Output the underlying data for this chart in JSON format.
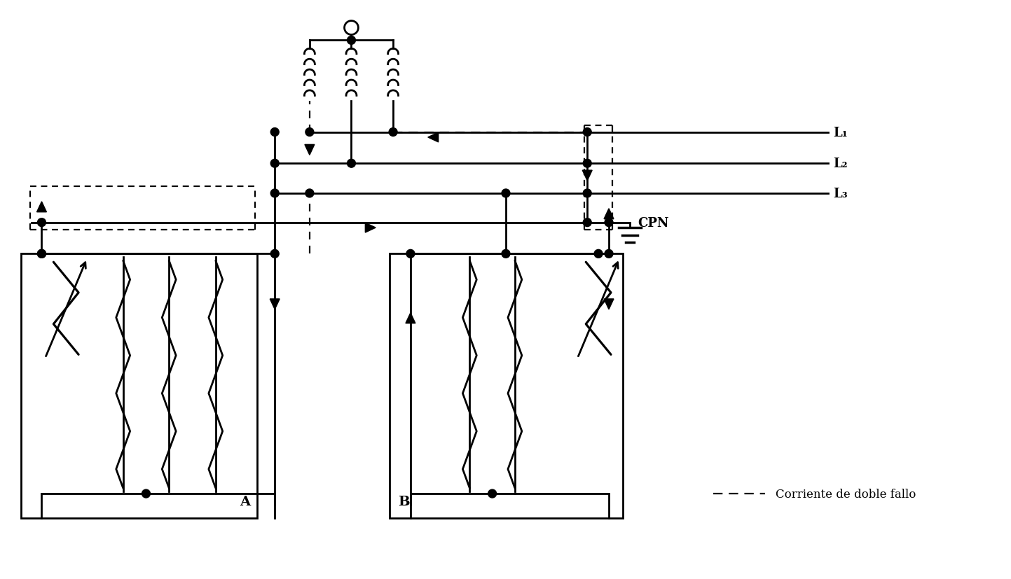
{
  "bg_color": "#ffffff",
  "line_color": "#000000",
  "label_L1": "L₁",
  "label_L2": "L₂",
  "label_L3": "L₃",
  "label_CPN": "CPN",
  "label_O": "O",
  "label_A": "A",
  "label_B": "B",
  "legend_dash_text": "Corriente de doble fallo",
  "figsize": [
    14.43,
    8.28
  ],
  "dpi": 100,
  "n_inductor_loops": 5,
  "inductor_loop_r": 0.075
}
